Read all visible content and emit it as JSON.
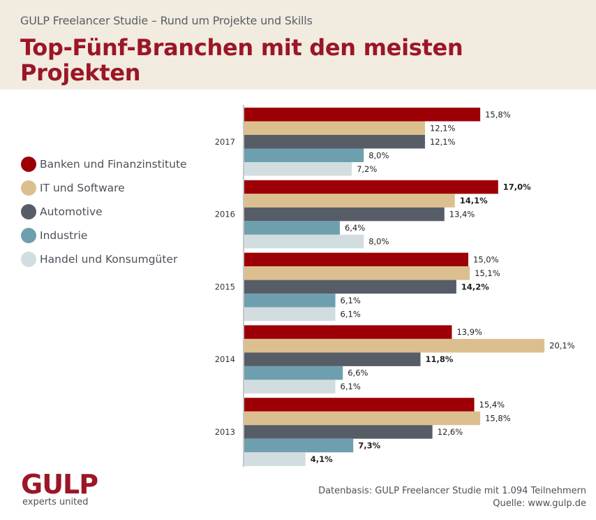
{
  "header": {
    "subtitle": "GULP Freelancer Studie – Rund um Projekte und Skills",
    "title": "Top-Fünf-Branchen mit den meisten Projekten"
  },
  "legend": [
    {
      "label": "Banken und Finanzinstitute",
      "color": "#9c0006"
    },
    {
      "label": "IT und Software",
      "color": "#dcbf8f"
    },
    {
      "label": "Automotive",
      "color": "#575d66"
    },
    {
      "label": "Industrie",
      "color": "#6e9fae"
    },
    {
      "label": "Handel und Konsumgüter",
      "color": "#d2dde0"
    }
  ],
  "chart_data": {
    "type": "bar",
    "orientation": "horizontal",
    "title": "Top-Fünf-Branchen mit den meisten Projekten",
    "xlabel": "",
    "ylabel": "",
    "unit": "%",
    "xlim": [
      0,
      21
    ],
    "grid": false,
    "legend_position": "left",
    "categories": [
      "2017",
      "2016",
      "2015",
      "2014",
      "2013"
    ],
    "series": [
      {
        "name": "Banken und Finanzinstitute",
        "color": "#9c0006",
        "values": [
          15.8,
          17.0,
          15.0,
          13.9,
          15.4
        ],
        "labels": [
          "15,8%",
          "17,0%",
          "15,0%",
          "13,9%",
          "15,4%"
        ]
      },
      {
        "name": "IT und Software",
        "color": "#dcbf8f",
        "values": [
          12.1,
          14.1,
          15.1,
          20.1,
          15.8
        ],
        "labels": [
          "12,1%",
          "14,1%",
          "15,1%",
          "20,1%",
          "15,8%"
        ]
      },
      {
        "name": "Automotive",
        "color": "#575d66",
        "values": [
          12.1,
          13.4,
          14.2,
          11.8,
          12.6
        ],
        "labels": [
          "12,1%",
          "13,4%",
          "14,2%",
          "11,8%",
          "12,6%"
        ]
      },
      {
        "name": "Industrie",
        "color": "#6e9fae",
        "values": [
          8.0,
          6.4,
          6.1,
          6.6,
          7.3
        ],
        "labels": [
          "8,0%",
          "6,4%",
          "6,1%",
          "6,6%",
          "7,3%"
        ]
      },
      {
        "name": "Handel und Konsumgüter",
        "color": "#d2dde0",
        "values": [
          7.2,
          8.0,
          6.1,
          6.1,
          4.1
        ],
        "labels": [
          "7,2%",
          "8,0%",
          "6,1%",
          "6,1%",
          "4,1%"
        ]
      }
    ],
    "highlighted": [
      [
        0,
        0,
        0,
        0,
        0
      ],
      [
        1,
        1,
        0,
        0,
        0
      ],
      [
        0,
        0,
        1,
        0,
        0
      ],
      [
        0,
        0,
        1,
        0,
        0
      ],
      [
        0,
        0,
        0,
        1,
        1
      ]
    ]
  },
  "footer": {
    "logo": "GULP",
    "tagline": "experts united",
    "source_line1": "Datenbasis: GULP Freelancer Studie mit 1.094 Teilnehmern",
    "source_line2": "Quelle: www.gulp.de"
  }
}
